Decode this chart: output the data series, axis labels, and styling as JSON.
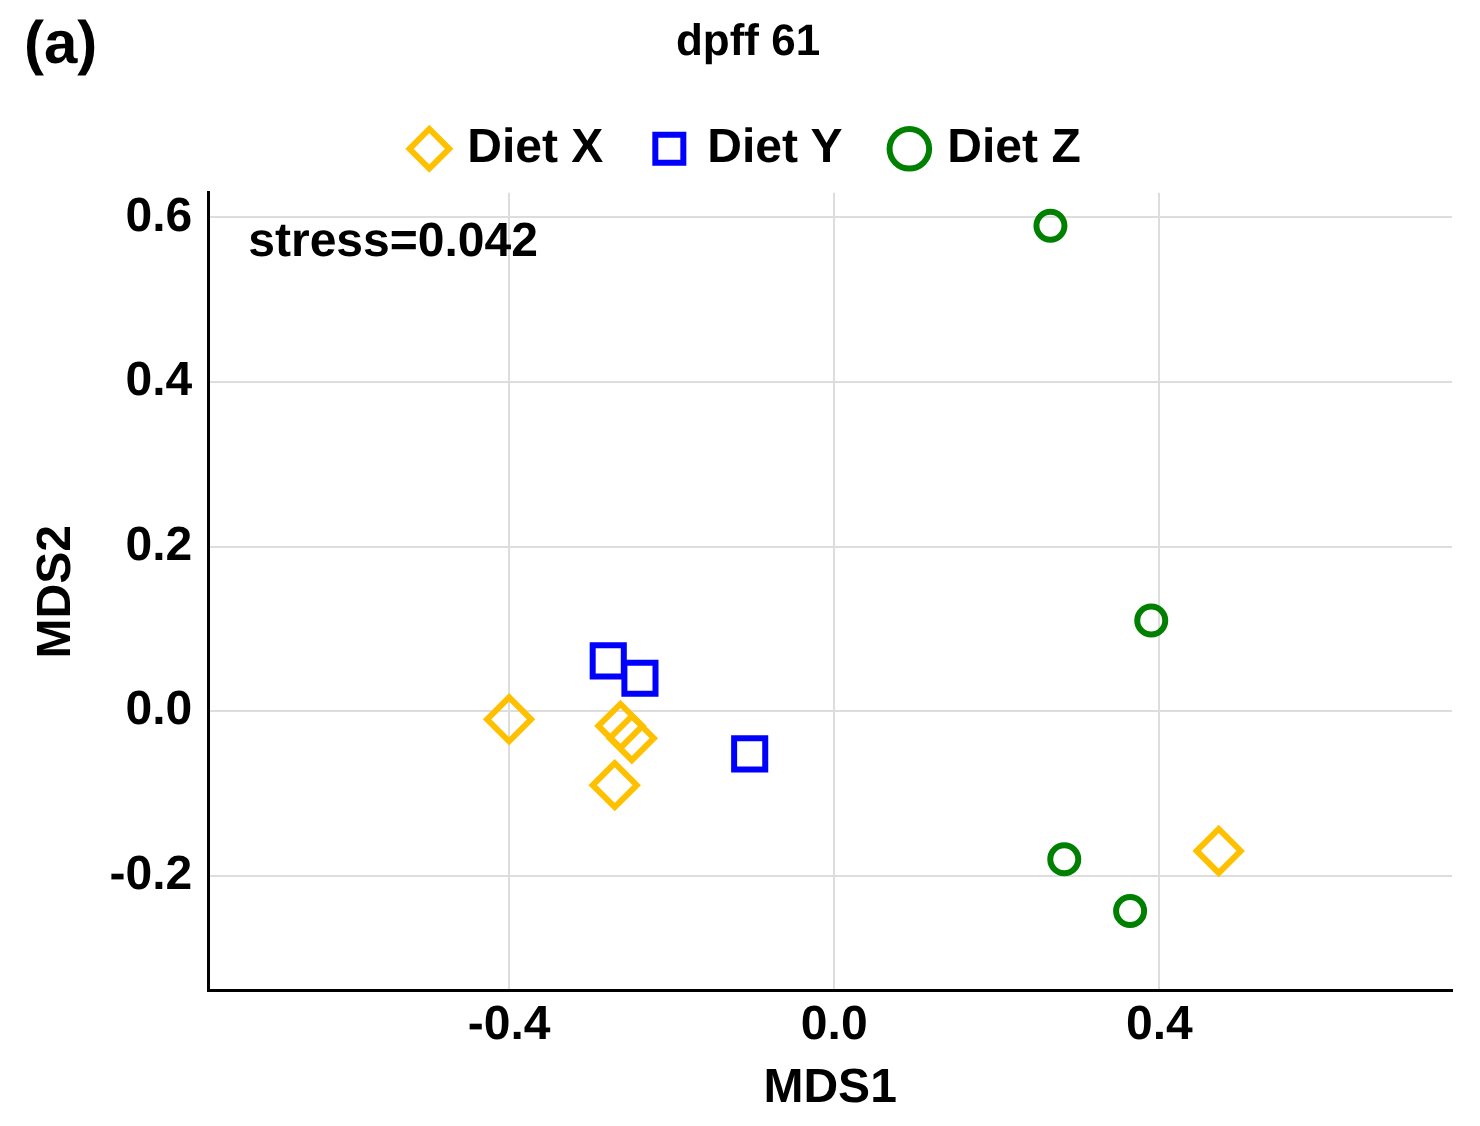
{
  "chart_data": {
    "type": "scatter",
    "title": "dpff 61",
    "xlabel": "MDS1",
    "ylabel": "MDS2",
    "annotations": [
      "(a)",
      "stress=0.042"
    ],
    "xlim": [
      -0.77,
      0.76
    ],
    "xticks": [
      {
        "value": -0.4,
        "label": "-0.4"
      },
      {
        "value": 0,
        "label": "0.0"
      },
      {
        "value": 0.4,
        "label": "0.4"
      }
    ],
    "ylim": [
      -0.34,
      0.63
    ],
    "yticks": [
      {
        "value": -0.2,
        "label": "-0.2"
      },
      {
        "value": 0,
        "label": "0.0"
      },
      {
        "value": 0.2,
        "label": "0.2"
      },
      {
        "value": 0.4,
        "label": "0.4"
      },
      {
        "value": 0.6,
        "label": "0.6"
      }
    ],
    "grid": true,
    "legend": "top",
    "series": [
      {
        "name": "Diet X",
        "color": "#ffc000",
        "marker": "diamond",
        "x": [
          -0.4,
          -0.263,
          -0.249,
          -0.27,
          0.473
        ],
        "values": [
          -0.01,
          -0.018,
          -0.033,
          -0.09,
          -0.17
        ]
      },
      {
        "name": "Diet Y",
        "color": "#0000ff",
        "marker": "square",
        "x": [
          -0.278,
          -0.239,
          -0.104
        ],
        "values": [
          0.061,
          0.04,
          -0.052
        ]
      },
      {
        "name": "Diet Z",
        "color": "#008000",
        "marker": "circle",
        "x": [
          0.266,
          0.39,
          0.283,
          0.364
        ],
        "values": [
          0.59,
          0.11,
          -0.18,
          -0.243
        ]
      }
    ]
  }
}
